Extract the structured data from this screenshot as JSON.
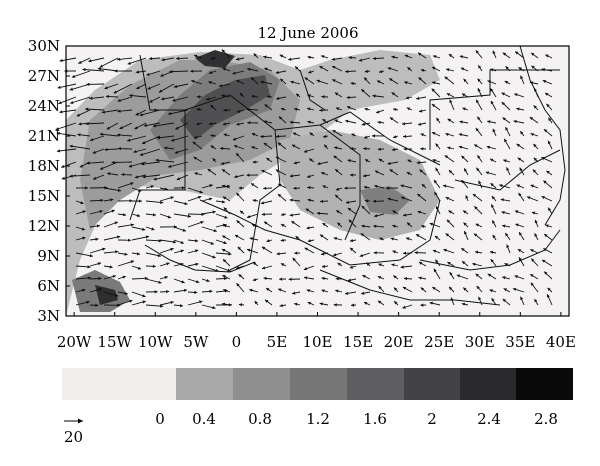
{
  "title": "12 June 2006",
  "lat_labels": [
    "30N",
    "27N",
    "24N",
    "21N",
    "18N",
    "15N",
    "12N",
    "9N",
    "6N",
    "3N"
  ],
  "lon_labels": [
    "20W",
    "15W",
    "10W",
    "5W",
    "0",
    "5E",
    "10E",
    "15E",
    "20E",
    "25E",
    "30E",
    "35E",
    "40E"
  ],
  "colorbar": {
    "tick_labels": [
      "0",
      "0.4",
      "0.8",
      "1.2",
      "1.6",
      "2",
      "2.4",
      "2.8"
    ],
    "colors": [
      "#f2eeee",
      "#f2eeee",
      "#a9a9aa",
      "#8f8f90",
      "#767677",
      "#5e5e60",
      "#434346",
      "#2a2a2c",
      "#0a0a0a"
    ]
  },
  "vector_reference": {
    "label": "20"
  },
  "map_extent": {
    "lon": [
      -21,
      41
    ],
    "lat": [
      3,
      30
    ]
  }
}
